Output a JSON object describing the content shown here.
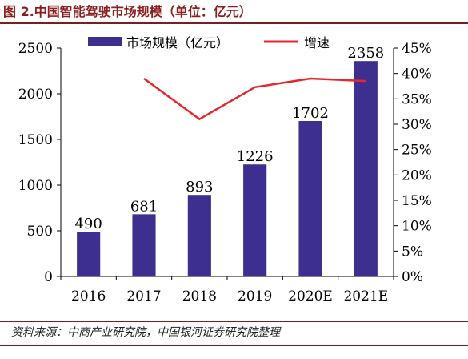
{
  "figure_title": "图 2.中国智能驾驶市场规模（单位：亿元）",
  "source_note": "资料来源：中商产业研究院，中国银河证券研究院整理",
  "colors": {
    "bar": "#3d2f8f",
    "line": "#e8262a",
    "title": "#8b1e1e",
    "rule": "#7a1f1f"
  },
  "chart_data": {
    "type": "bar+line",
    "categories": [
      "2016",
      "2017",
      "2018",
      "2019",
      "2020E",
      "2021E"
    ],
    "series": [
      {
        "name": "市场规模（亿元）",
        "type": "bar",
        "axis": "left",
        "values": [
          490,
          681,
          893,
          1226,
          1702,
          2358
        ]
      },
      {
        "name": "增速",
        "type": "line",
        "axis": "right",
        "values": [
          null,
          0.39,
          0.31,
          0.373,
          0.39,
          0.385
        ]
      }
    ],
    "data_labels": [
      "490",
      "681",
      "893",
      "1226",
      "1702",
      "2358"
    ],
    "y_left": {
      "ylim": [
        0,
        2500
      ],
      "ticks": [
        0,
        500,
        1000,
        1500,
        2000,
        2500
      ]
    },
    "y_right": {
      "ylim": [
        0,
        0.45
      ],
      "ticks": [
        0,
        0.05,
        0.1,
        0.15,
        0.2,
        0.25,
        0.3,
        0.35,
        0.4,
        0.45
      ],
      "tick_labels": [
        "0%",
        "5%",
        "10%",
        "15%",
        "20%",
        "25%",
        "30%",
        "35%",
        "40%",
        "45%"
      ]
    },
    "legend_position": "top",
    "grid": false
  }
}
